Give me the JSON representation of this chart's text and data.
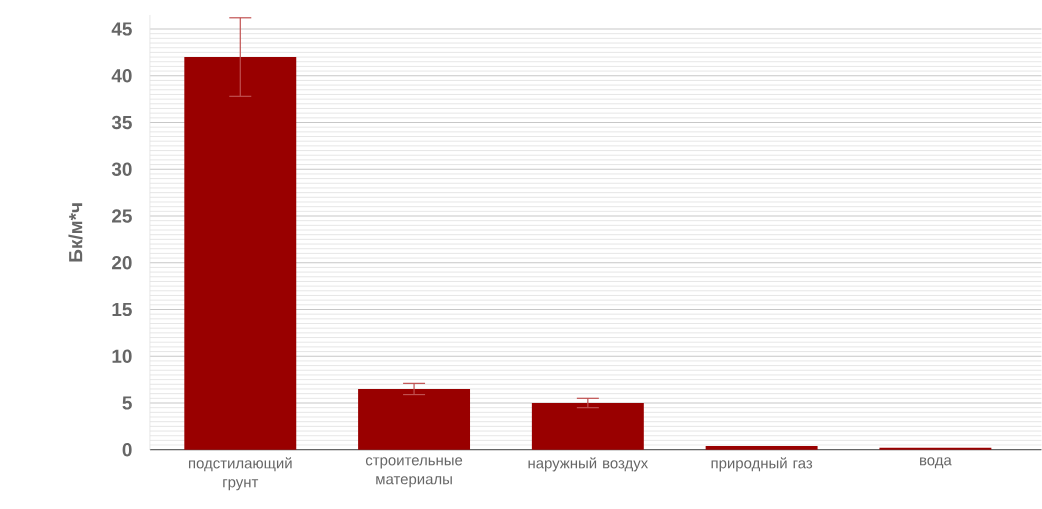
{
  "chart_data": {
    "type": "bar",
    "ylabel": "Бк/м*ч",
    "categories": [
      "подстилающий грунт",
      "строительные материалы",
      "наружный воздух",
      "природный газ",
      "вода"
    ],
    "values": [
      42,
      6.5,
      5,
      0.4,
      0.2
    ],
    "errors": [
      4.2,
      0.6,
      0.5,
      null,
      null
    ],
    "color": "#990000",
    "ylim": [
      0,
      46.5
    ],
    "yticks": [
      0,
      5,
      10,
      15,
      20,
      25,
      30,
      35,
      40,
      45
    ],
    "grid": "y"
  }
}
